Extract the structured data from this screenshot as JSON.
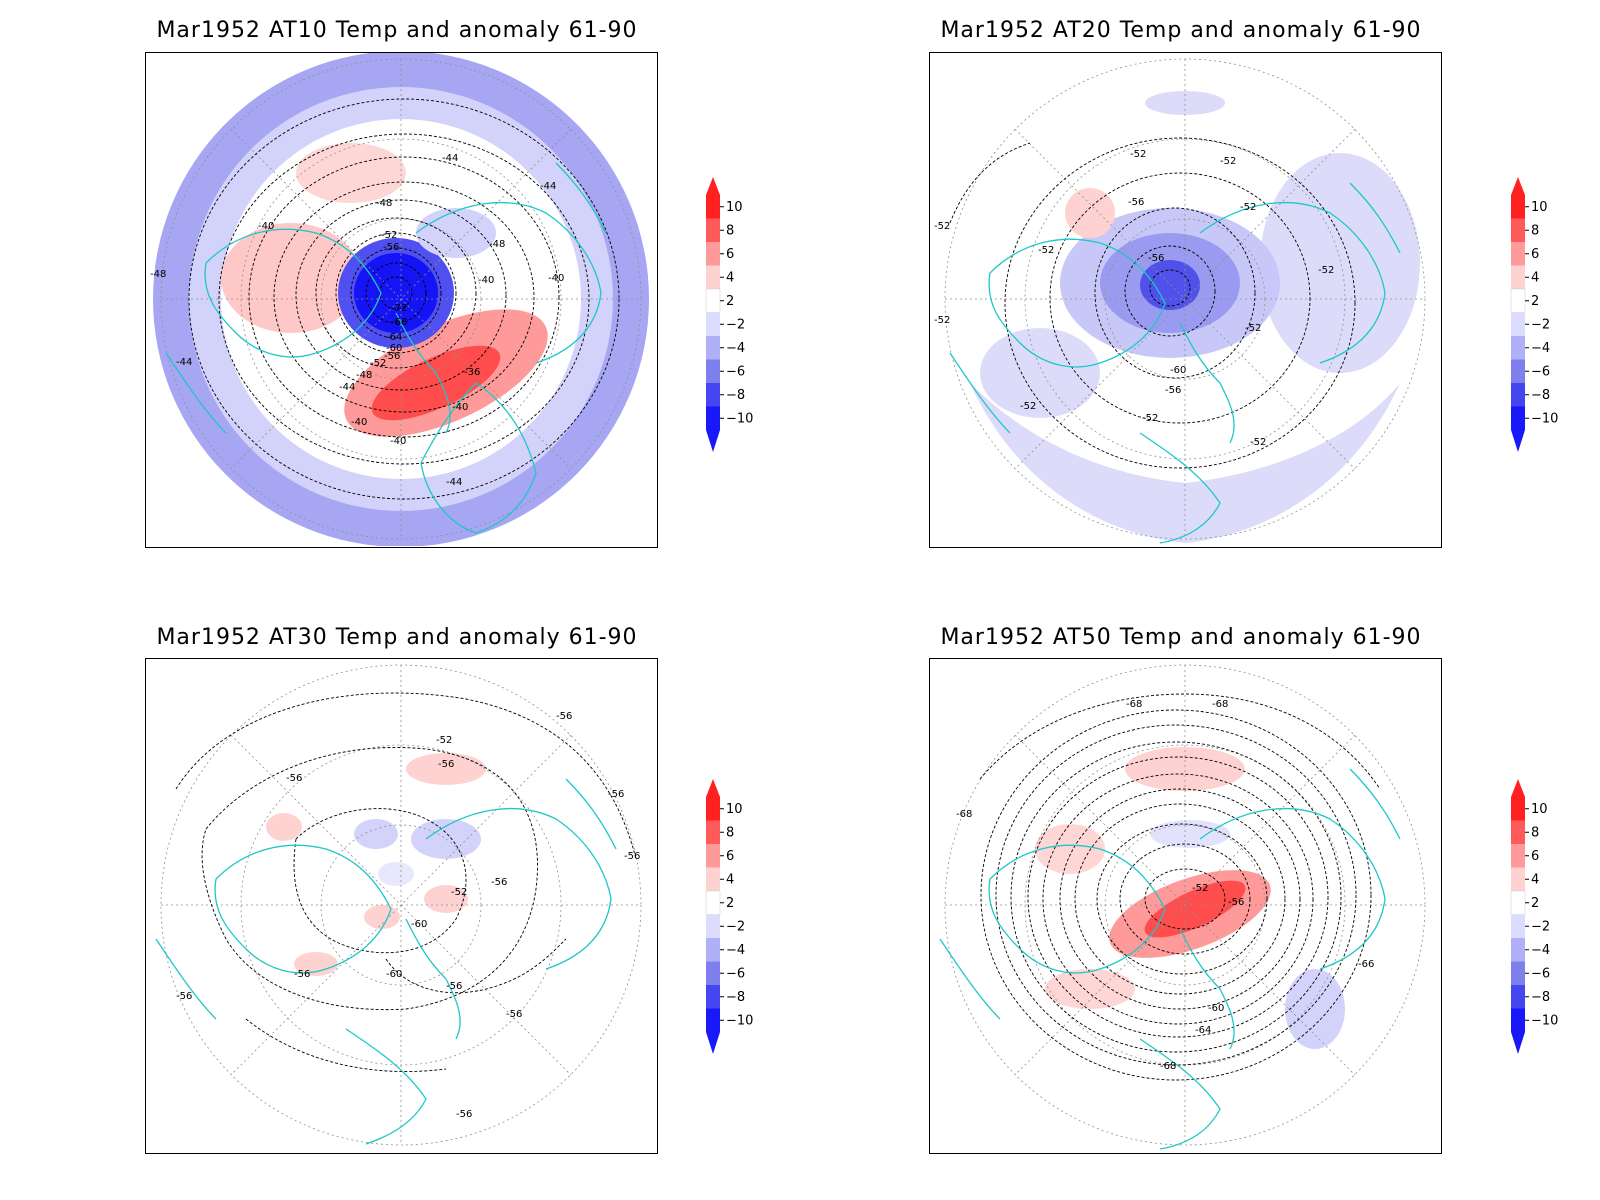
{
  "panels": [
    {
      "title": "Mar1952 AT10 Temp and anomaly 61-90",
      "contour_labels": [
        "-40",
        "-44",
        "-48",
        "-52",
        "-56",
        "-72",
        "-68",
        "-64",
        "-60",
        "-56",
        "-52",
        "-48",
        "-44",
        "-40",
        "-36",
        "-40",
        "-40",
        "-40",
        "-44",
        "-44",
        "-48",
        "-48",
        "-40",
        "-44"
      ]
    },
    {
      "title": "Mar1952 AT20 Temp and anomaly 61-90",
      "contour_labels": [
        "-52",
        "-52",
        "-56",
        "-52",
        "-52",
        "-56",
        "-52",
        "-52",
        "-60",
        "-56",
        "-52",
        "-52",
        "-52",
        "-52",
        "-52"
      ]
    },
    {
      "title": "Mar1952 AT30 Temp and anomaly 61-90",
      "contour_labels": [
        "-56",
        "-52",
        "-56",
        "-56",
        "-52",
        "-56",
        "-60",
        "-60",
        "-56",
        "-56",
        "-56",
        "-56",
        "-56",
        "-56",
        "-56"
      ]
    },
    {
      "title": "Mar1952 AT50 Temp and anomaly 61-90",
      "contour_labels": [
        "-68",
        "-68",
        "-68",
        "-52",
        "-56",
        "-66",
        "-60",
        "-64",
        "-68"
      ]
    }
  ],
  "colorbar": {
    "ticks": [
      "10",
      "8",
      "6",
      "4",
      "2",
      "−2",
      "−4",
      "−6",
      "−8",
      "−10"
    ],
    "colors": [
      "#ff2020",
      "#ff5a5a",
      "#ff9a9a",
      "#ffd2d2",
      "#ffffff",
      "#dcdcff",
      "#b0b0f8",
      "#7f7fee",
      "#4646f0",
      "#1818f8"
    ]
  },
  "colors": {
    "coastline": "#1fc7c7",
    "contour": "#000000",
    "graticule": "#909090"
  }
}
